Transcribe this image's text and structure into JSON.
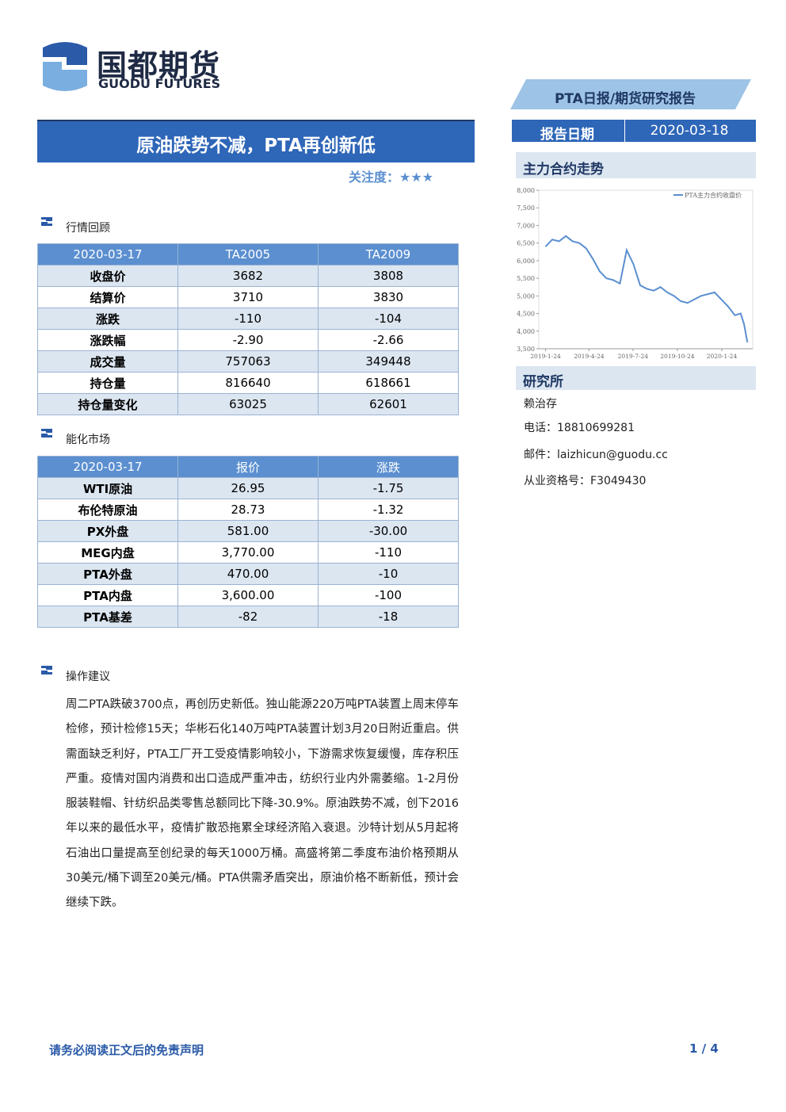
{
  "header": {
    "company": "国都期货",
    "company_en": "GUODU FUTURES",
    "report_type": "PTA日报/期货研究报告",
    "date_label": "报告日期",
    "date": "2020-03-18"
  },
  "title": "原油跌势不减，PTA再创新低",
  "attention": "关注度：★★★",
  "section1": "行情回顾",
  "table1": {
    "header": [
      "2020-03-17",
      "TA2005",
      "TA2009"
    ],
    "rows": [
      [
        "收盘价",
        "3682",
        "3808"
      ],
      [
        "结算价",
        "3710",
        "3830"
      ],
      [
        "涨跌",
        "-110",
        "-104"
      ],
      [
        "涨跌幅",
        "-2.90",
        "-2.66"
      ],
      [
        "成交量",
        "757063",
        "349448"
      ],
      [
        "持仓量",
        "816640",
        "618661"
      ],
      [
        "持仓量变化",
        "63025",
        "62601"
      ]
    ]
  },
  "section2": "能化市场",
  "table2": {
    "header": [
      "2020-03-17",
      "报价",
      "涨跌"
    ],
    "rows": [
      [
        "WTI原油",
        "26.95",
        "-1.75"
      ],
      [
        "布伦特原油",
        "28.73",
        "-1.32"
      ],
      [
        "PX外盘",
        "581.00",
        "-30.00"
      ],
      [
        "MEG内盘",
        "3,770.00",
        "-110"
      ],
      [
        "PTA外盘",
        "470.00",
        "-10"
      ],
      [
        "PTA内盘",
        "3,600.00",
        "-100"
      ],
      [
        "PTA基差",
        "-82",
        "-18"
      ]
    ]
  },
  "section3": "操作建议",
  "body": "周二PTA跌破3700点，再创历史新低。独山能源220万吨PTA装置上周末停车检修，预计检修15天；华彬石化140万吨PTA装置计划3月20日附近重启。供需面缺乏利好，PTA工厂开工受疫情影响较小，下游需求恢复缓慢，库存积压严重。疫情对国内消费和出口造成严重冲击，纺织行业内外需萎缩。1-2月份服装鞋帽、针纺织品类零售总额同比下降-30.9%。原油跌势不减，创下2016年以来的最低水平，疫情扩散恐拖累全球经济陷入衰退。沙特计划从5月起将石油出口量提高至创纪录的每天1000万桶。高盛将第二季度布油价格预期从30美元/桶下调至20美元/桶。PTA供需矛盾突出，原油价格不断新低，预计会继续下跌。",
  "chart_title": "主力合约走势",
  "chart_data": {
    "type": "line",
    "x": [
      "2019-1-24",
      "2019-2-7",
      "2019-2-21",
      "2019-3-7",
      "2019-3-21",
      "2019-4-4",
      "2019-4-18",
      "2019-5-2",
      "2019-5-16",
      "2019-5-30",
      "2019-6-13",
      "2019-6-27",
      "2019-7-11",
      "2019-7-25",
      "2019-8-8",
      "2019-8-22",
      "2019-9-5",
      "2019-9-19",
      "2019-10-3",
      "2019-10-17",
      "2019-10-31",
      "2019-11-14",
      "2019-11-28",
      "2019-12-12",
      "2019-12-26",
      "2020-1-9",
      "2020-1-23",
      "2020-2-6",
      "2020-2-20",
      "2020-3-3",
      "2020-3-10",
      "2020-3-17"
    ],
    "series": [
      {
        "name": "PTA主力合约收盘价",
        "color": "#5b8fd0",
        "values": [
          6400,
          6600,
          6550,
          6700,
          6550,
          6500,
          6350,
          6050,
          5700,
          5500,
          5450,
          5350,
          6300,
          5900,
          5300,
          5200,
          5150,
          5250,
          5100,
          5000,
          4850,
          4800,
          4900,
          5000,
          5050,
          5100,
          4900,
          4700,
          4450,
          4500,
          4200,
          3682
        ]
      }
    ],
    "xlim": [
      "2019-1-10",
      "2020-3-28"
    ],
    "xticks": [
      "2019-1-24",
      "2019-4-24",
      "2019-7-24",
      "2019-10-24",
      "2020-1-24"
    ],
    "ylim": [
      3500,
      8000
    ],
    "yticks": [
      {
        "value": 3500,
        "label": "3,500"
      },
      {
        "value": 4000,
        "label": "4,000"
      },
      {
        "value": 4500,
        "label": "4,500"
      },
      {
        "value": 5000,
        "label": "5,000"
      },
      {
        "value": 5500,
        "label": "5,500"
      },
      {
        "value": 6000,
        "label": "6,000"
      },
      {
        "value": 6500,
        "label": "6,500"
      },
      {
        "value": 7000,
        "label": "7,000"
      },
      {
        "value": 7500,
        "label": "7,500"
      },
      {
        "value": 8000,
        "label": "8,000"
      }
    ],
    "legend": "upper right"
  },
  "research": {
    "title": "研究所",
    "name": "赖治存",
    "phone": "电话：18810699281",
    "email": "邮件：laizhicun@guodu.cc",
    "license": "从业资格号：F3049430"
  },
  "footer": {
    "disclaimer": "请务必阅读正文后的免责声明",
    "page": "1 / 4"
  }
}
